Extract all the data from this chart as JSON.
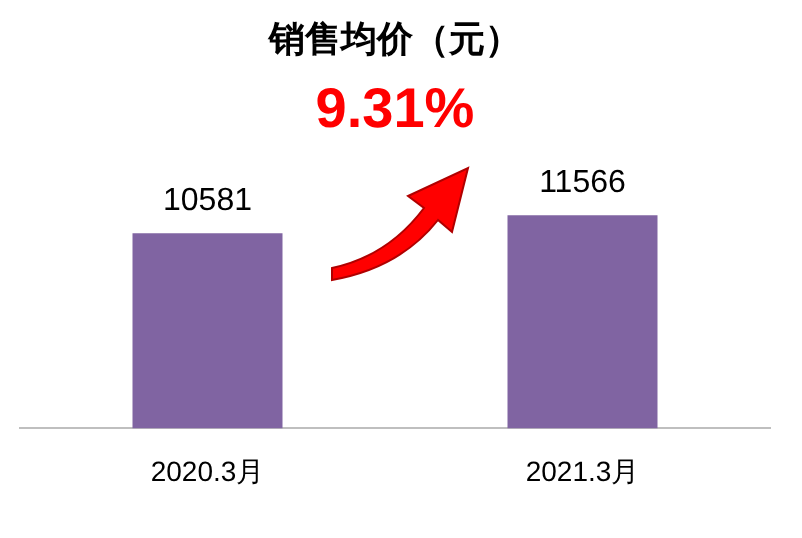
{
  "chart_data": {
    "type": "bar",
    "title": "销售均价（元）",
    "categories": [
      "2020.3月",
      "2021.3月"
    ],
    "values": [
      10581,
      11566
    ],
    "color": "#8064a2",
    "tick_labels": "x",
    "grid": false,
    "legend": false,
    "data_labels": true,
    "annotations": [
      "9.31%"
    ]
  }
}
